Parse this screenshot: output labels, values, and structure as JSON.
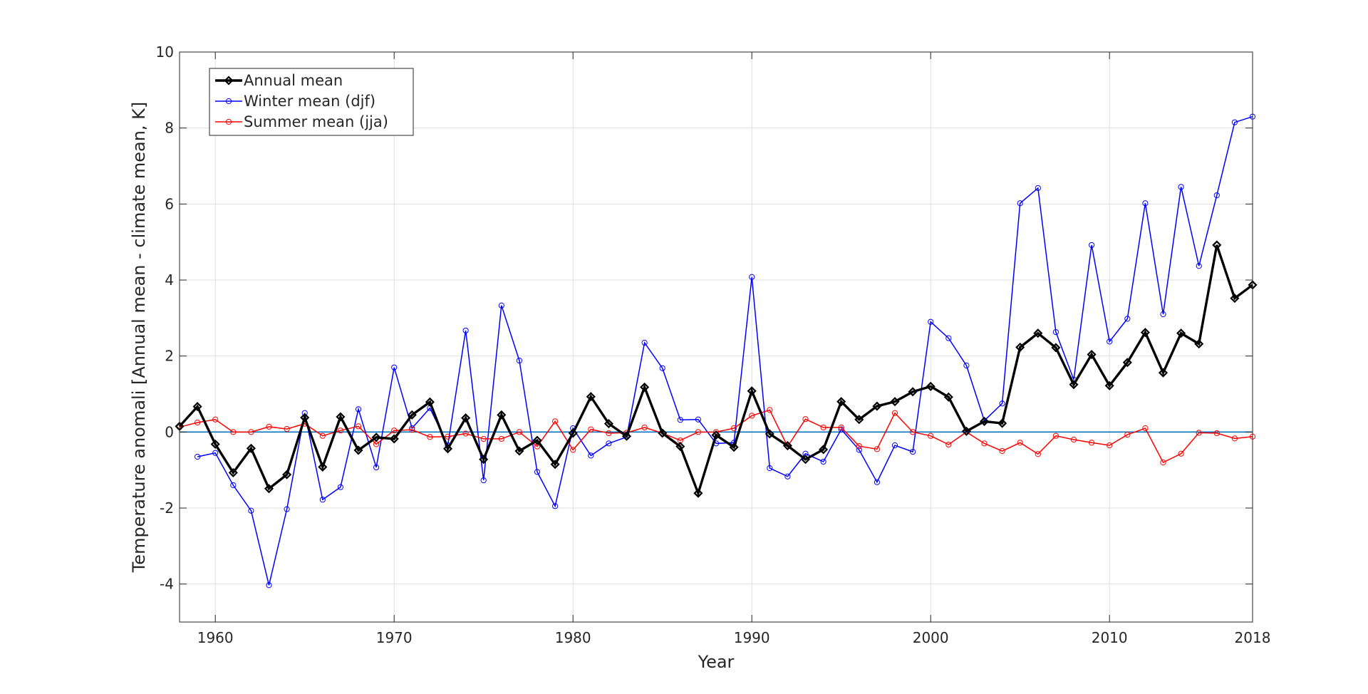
{
  "chart_data": {
    "type": "line",
    "xlabel": "Year",
    "ylabel": "Temperature anomali [Annual mean - climate mean, K]",
    "xlim": [
      1958,
      2018
    ],
    "ylim": [
      -5,
      10
    ],
    "grid": true,
    "legend_position": "top-left",
    "x_ticks": [
      1960,
      1970,
      1980,
      1990,
      2000,
      2010,
      2018
    ],
    "x_tick_labels": [
      "1960",
      "1970",
      "1980",
      "1990",
      "2000",
      "2010",
      "2018"
    ],
    "y_ticks": [
      -4,
      -2,
      0,
      2,
      4,
      6,
      8,
      10
    ],
    "y_tick_labels": [
      "-4",
      "-2",
      "0",
      "2",
      "4",
      "6",
      "8",
      "10"
    ],
    "baseline": {
      "y": 0,
      "color": "#0072BD"
    },
    "series": [
      {
        "name": "Annual mean",
        "color": "#000000",
        "marker": "diamond",
        "bold": true,
        "x": [
          1958,
          1959,
          1960,
          1961,
          1962,
          1963,
          1964,
          1965,
          1966,
          1967,
          1968,
          1969,
          1970,
          1971,
          1972,
          1973,
          1974,
          1975,
          1976,
          1977,
          1978,
          1979,
          1980,
          1981,
          1982,
          1983,
          1984,
          1985,
          1986,
          1987,
          1988,
          1989,
          1990,
          1991,
          1992,
          1993,
          1994,
          1995,
          1996,
          1997,
          1998,
          1999,
          2000,
          2001,
          2002,
          2003,
          2004,
          2005,
          2006,
          2007,
          2008,
          2009,
          2010,
          2011,
          2012,
          2013,
          2014,
          2015,
          2016,
          2017,
          2018
        ],
        "values": [
          0.15,
          0.67,
          -0.32,
          -1.07,
          -0.43,
          -1.49,
          -1.12,
          0.38,
          -0.92,
          0.4,
          -0.48,
          -0.14,
          -0.18,
          0.45,
          0.79,
          -0.44,
          0.37,
          -0.72,
          0.45,
          -0.5,
          -0.22,
          -0.85,
          -0.03,
          0.93,
          0.22,
          -0.11,
          1.18,
          -0.03,
          -0.38,
          -1.61,
          -0.08,
          -0.4,
          1.08,
          -0.05,
          -0.36,
          -0.72,
          -0.46,
          0.8,
          0.33,
          0.68,
          0.8,
          1.06,
          1.2,
          0.92,
          0.02,
          0.28,
          0.23,
          2.23,
          2.6,
          2.22,
          1.25,
          2.04,
          1.22,
          1.83,
          2.62,
          1.56,
          2.6,
          2.32,
          4.92,
          3.52,
          3.87
        ]
      },
      {
        "name": "Winter mean (djf)",
        "color": "#0000FF",
        "marker": "circle",
        "bold": false,
        "x": [
          1959,
          1960,
          1961,
          1962,
          1963,
          1964,
          1965,
          1966,
          1967,
          1968,
          1969,
          1970,
          1971,
          1972,
          1973,
          1974,
          1975,
          1976,
          1977,
          1978,
          1979,
          1980,
          1981,
          1982,
          1983,
          1984,
          1985,
          1986,
          1987,
          1988,
          1989,
          1990,
          1991,
          1992,
          1993,
          1994,
          1995,
          1996,
          1997,
          1998,
          1999,
          2000,
          2001,
          2002,
          2003,
          2004,
          2005,
          2006,
          2007,
          2008,
          2009,
          2010,
          2011,
          2012,
          2013,
          2014,
          2015,
          2016,
          2017,
          2018
        ],
        "values": [
          -0.65,
          -0.55,
          -1.4,
          -2.07,
          -4.03,
          -2.03,
          0.5,
          -1.78,
          -1.45,
          0.6,
          -0.93,
          1.7,
          0.1,
          0.63,
          -0.35,
          2.67,
          -1.27,
          3.33,
          1.88,
          -1.05,
          -1.95,
          0.1,
          -0.62,
          -0.3,
          -0.13,
          2.35,
          1.68,
          0.32,
          0.33,
          -0.3,
          -0.28,
          4.08,
          -0.95,
          -1.17,
          -0.57,
          -0.78,
          0.07,
          -0.47,
          -1.32,
          -0.35,
          -0.52,
          2.9,
          2.47,
          1.75,
          0.3,
          0.75,
          6.02,
          6.42,
          2.63,
          1.38,
          4.92,
          2.38,
          2.98,
          6.02,
          3.1,
          6.45,
          4.37,
          6.23,
          8.15,
          8.3
        ]
      },
      {
        "name": "Summer mean (jja)",
        "color": "#FF0000",
        "marker": "circle",
        "bold": false,
        "x": [
          1958,
          1959,
          1960,
          1961,
          1962,
          1963,
          1964,
          1965,
          1966,
          1967,
          1968,
          1969,
          1970,
          1971,
          1972,
          1973,
          1974,
          1975,
          1976,
          1977,
          1978,
          1979,
          1980,
          1981,
          1982,
          1983,
          1984,
          1985,
          1986,
          1987,
          1988,
          1989,
          1990,
          1991,
          1992,
          1993,
          1994,
          1995,
          1996,
          1997,
          1998,
          1999,
          2000,
          2001,
          2002,
          2003,
          2004,
          2005,
          2006,
          2007,
          2008,
          2009,
          2010,
          2011,
          2012,
          2013,
          2014,
          2015,
          2016,
          2017,
          2018
        ],
        "values": [
          0.13,
          0.25,
          0.33,
          0.0,
          0.0,
          0.14,
          0.08,
          0.22,
          -0.1,
          0.04,
          0.15,
          -0.32,
          0.04,
          0.06,
          -0.13,
          -0.12,
          -0.04,
          -0.18,
          -0.18,
          0.0,
          -0.38,
          0.28,
          -0.47,
          0.07,
          -0.03,
          -0.02,
          0.12,
          -0.03,
          -0.22,
          0.0,
          0.0,
          0.1,
          0.43,
          0.58,
          -0.38,
          0.34,
          0.12,
          0.12,
          -0.37,
          -0.45,
          0.5,
          0.0,
          -0.1,
          -0.33,
          0.0,
          -0.3,
          -0.5,
          -0.28,
          -0.58,
          -0.1,
          -0.2,
          -0.28,
          -0.35,
          -0.07,
          0.1,
          -0.8,
          -0.57,
          -0.02,
          -0.03,
          -0.17,
          -0.12
        ]
      }
    ]
  }
}
